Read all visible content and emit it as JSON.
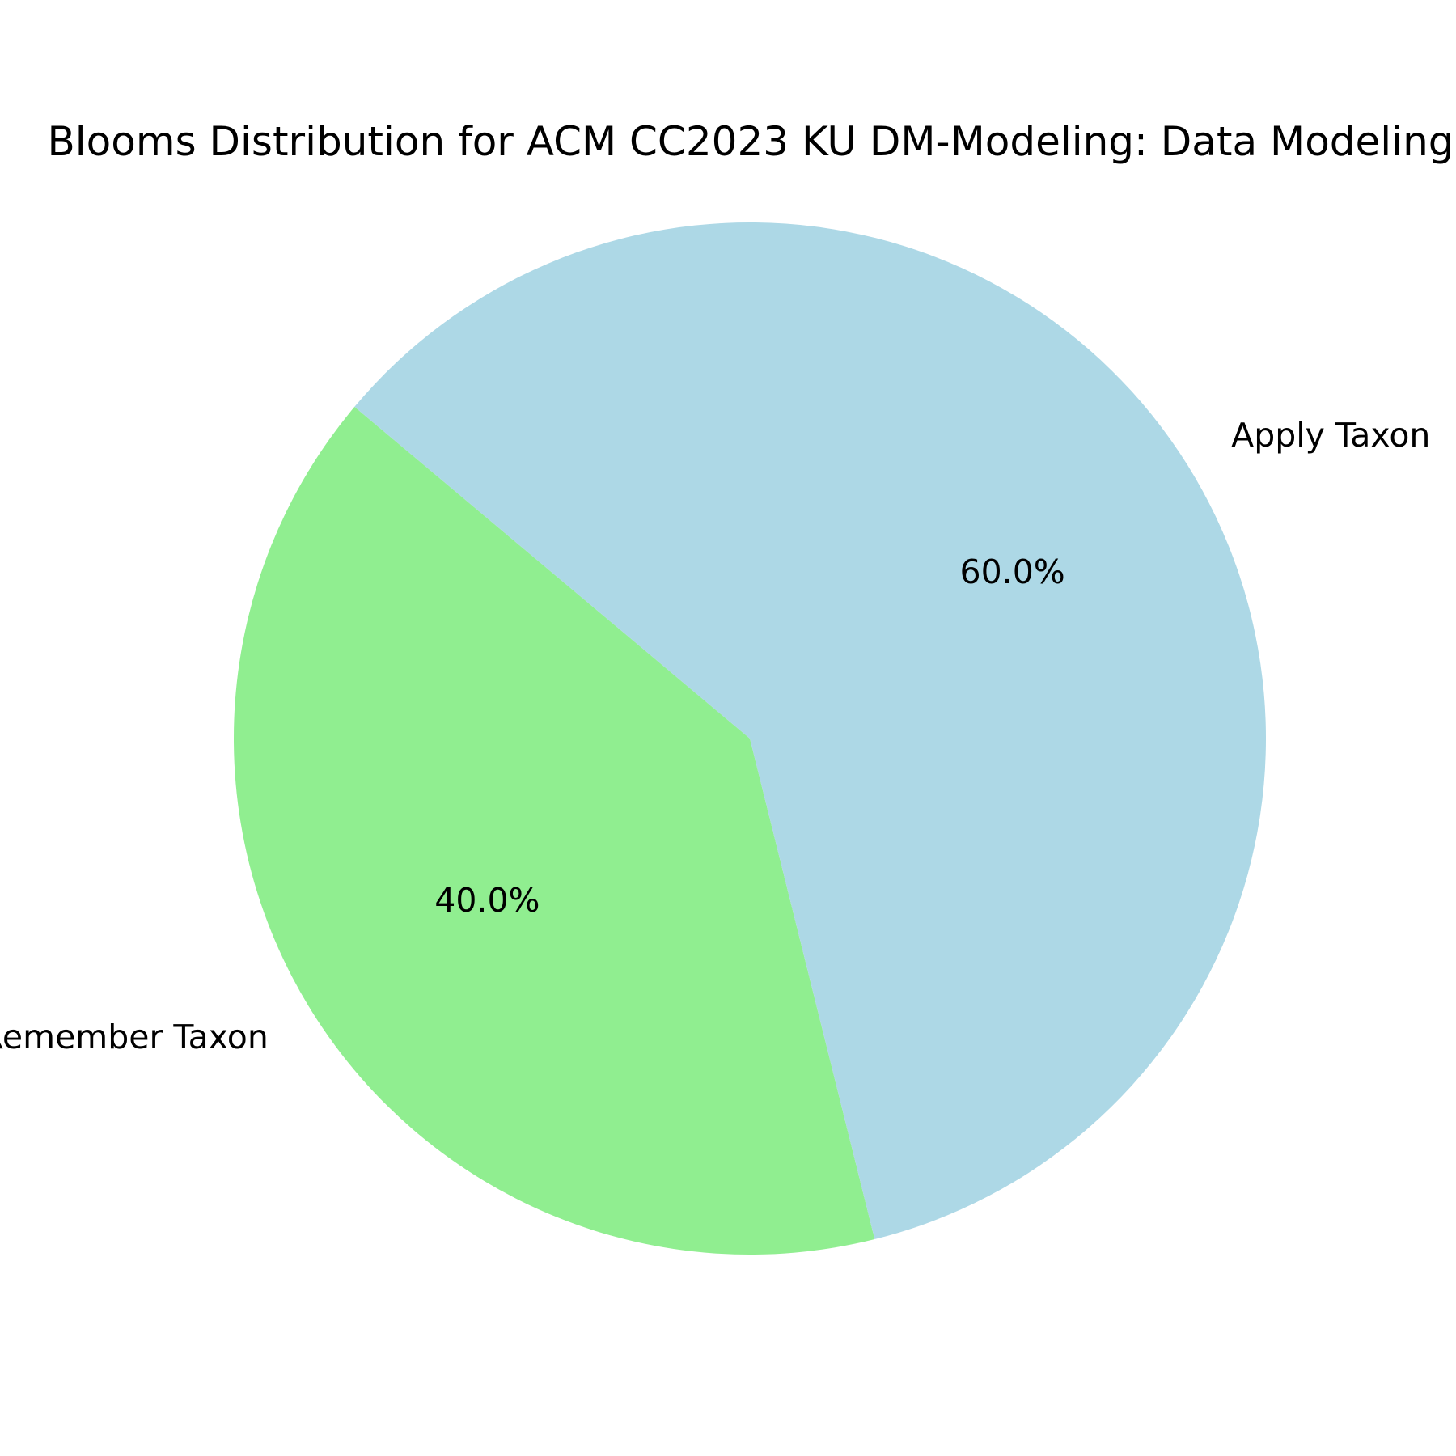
{
  "chart_data": {
    "type": "pie",
    "title": "Blooms Distribution for ACM CC2023 KU DM-Modeling: Data Modeling",
    "categories": [
      "Remember Taxon",
      "Apply Taxon"
    ],
    "values": [
      40.0,
      60.0
    ],
    "percent_labels": [
      "40.0%",
      "60.0%"
    ],
    "colors": [
      "#90ee90",
      "#add8e6"
    ],
    "start_angle_deg": 140,
    "direction": "counterclockwise"
  }
}
